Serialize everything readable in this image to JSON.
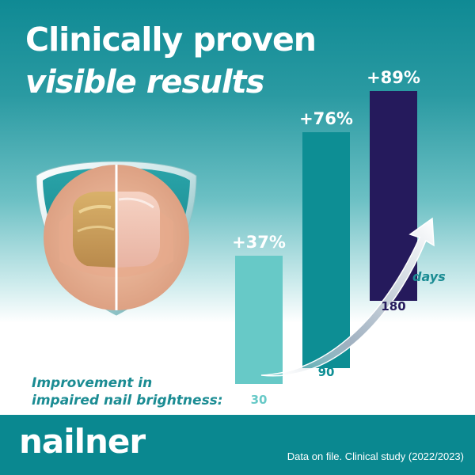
{
  "headline": {
    "line1": "Clinically proven",
    "line2": "visible results"
  },
  "caption": {
    "line1": "Improvement in",
    "line2": "impaired nail brightness:"
  },
  "footer": {
    "brand": "nailner",
    "note": "Data on file. Clinical study (2022/2023)"
  },
  "colors": {
    "bar_day30": "#67c9c7",
    "bar_day90": "#0d8e94",
    "bar_day180": "#251a5c",
    "footer": "#0a8890"
  },
  "chart_data": {
    "type": "bar",
    "categories": [
      "30",
      "90",
      "180"
    ],
    "values": [
      37,
      76,
      89
    ],
    "value_labels": [
      "+37%",
      "+76%",
      "+89%"
    ],
    "unit_label": "days",
    "ylim": [
      0,
      100
    ],
    "grid": false,
    "legend": "none"
  }
}
